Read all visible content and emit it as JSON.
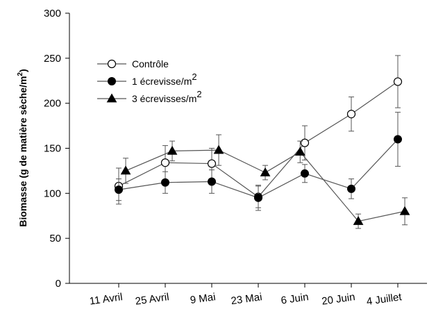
{
  "chart_data": {
    "type": "line",
    "title": "",
    "xlabel": "",
    "ylabel": "Biomasse (g de matière sèche/m²)",
    "ylabel_parts": [
      "Biomasse (g de matière sèche/m",
      "2",
      ")"
    ],
    "ylim": [
      0,
      300
    ],
    "yticks": [
      0,
      50,
      100,
      150,
      200,
      250,
      300
    ],
    "categories": [
      "11 Avril",
      "25 Avril",
      "9 Mai",
      "23 Mai",
      "6 Juin",
      "20 Juin",
      "4 Juillet"
    ],
    "legend_position": "top-left",
    "grid": false,
    "series": [
      {
        "name": "Contrôle",
        "name_parts": [
          "Contrôle",
          ""
        ],
        "marker": "circle-open",
        "x": [
          0,
          1,
          2,
          3,
          4,
          5,
          6
        ],
        "values": [
          108,
          134,
          133,
          96,
          156,
          188,
          224
        ],
        "errors": [
          20,
          19,
          17,
          12,
          19,
          19,
          29
        ]
      },
      {
        "name": "1 écrevisse/m²",
        "name_parts": [
          "1 écrevisse/m",
          "2"
        ],
        "marker": "circle-filled",
        "x": [
          0,
          1,
          2,
          3,
          4,
          5,
          6
        ],
        "values": [
          104,
          112,
          113,
          95,
          122,
          105,
          160
        ],
        "errors": [
          12,
          12,
          13,
          14,
          10,
          11,
          30
        ]
      },
      {
        "name": "3 écrevisses/m²",
        "name_parts": [
          "3 écrevisses/m",
          "2"
        ],
        "marker": "triangle-filled",
        "x": [
          0.15,
          1.15,
          2.15,
          3.15,
          3.9,
          5.15,
          6.15
        ],
        "values": [
          125,
          147,
          148,
          123,
          146,
          69,
          80
        ],
        "errors": [
          14,
          11,
          17,
          8,
          12,
          8,
          15
        ]
      }
    ]
  }
}
